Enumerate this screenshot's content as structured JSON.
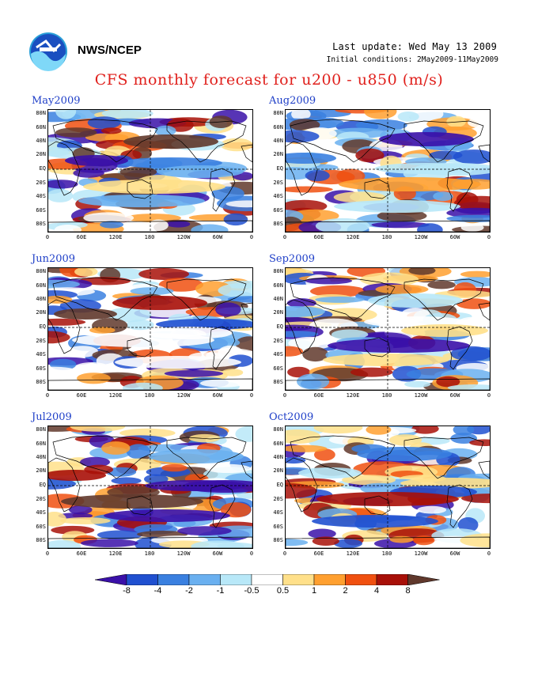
{
  "header": {
    "org": "NWS/NCEP",
    "last_update": "Last update: Wed May 13 2009",
    "init_cond": "Initial conditions: 2May2009-11May2009",
    "title": "CFS monthly forecast for u200 - u850 (m/s)"
  },
  "panels": [
    {
      "title": "May2009"
    },
    {
      "title": "Aug2009"
    },
    {
      "title": "Jun2009"
    },
    {
      "title": "Sep2009"
    },
    {
      "title": "Jul2009"
    },
    {
      "title": "Oct2009"
    }
  ],
  "axes": {
    "lat_labels": [
      "80N",
      "60N",
      "40N",
      "20N",
      "EQ",
      "20S",
      "40S",
      "60S",
      "80S"
    ],
    "lon_labels": [
      "0",
      "60E",
      "120E",
      "180",
      "120W",
      "60W",
      "0"
    ]
  },
  "colorbar": {
    "labels": [
      "-8",
      "-4",
      "-2",
      "-1",
      "-0.5",
      "0.5",
      "1",
      "2",
      "4",
      "8"
    ],
    "colors": [
      "#3a10a8",
      "#2050d0",
      "#3a80e0",
      "#6ab0f0",
      "#b8e8f8",
      "#ffffff",
      "#ffe08a",
      "#ffa030",
      "#f05010",
      "#a81008",
      "#60382c"
    ]
  }
}
